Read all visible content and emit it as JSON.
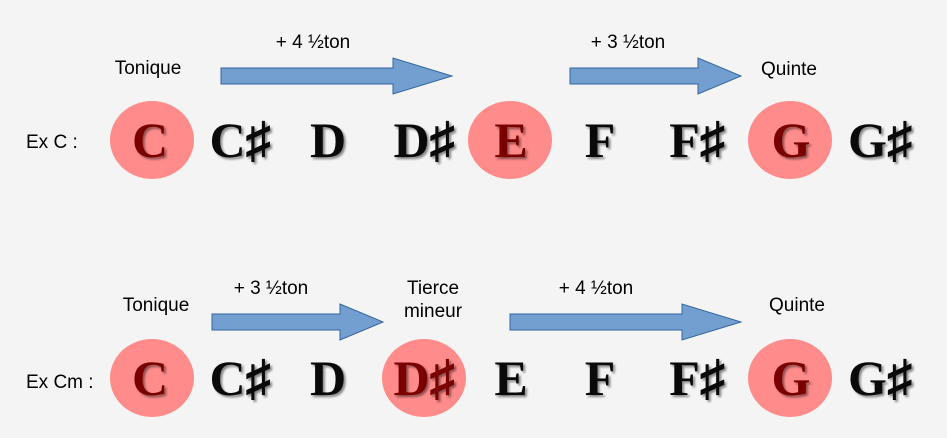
{
  "colors": {
    "background": "#f4f4f4",
    "highlight": "#ff8b8b",
    "arrow_fill": "#729fcf",
    "arrow_stroke": "#3465a4"
  },
  "row1": {
    "example_label": "Ex C :",
    "notes": [
      "C",
      "C♯",
      "D",
      "D♯",
      "E",
      "F",
      "F♯",
      "G",
      "G♯"
    ],
    "highlighted": [
      0,
      4,
      7
    ],
    "labels": {
      "root": "Tonique",
      "fifth": "Quinte"
    },
    "intervals": [
      "+ 4 ½ton",
      "+ 3 ½ton"
    ]
  },
  "row2": {
    "example_label": "Ex Cm :",
    "notes": [
      "C",
      "C♯",
      "D",
      "D♯",
      "E",
      "F",
      "F♯",
      "G",
      "G♯"
    ],
    "highlighted": [
      0,
      3,
      7
    ],
    "labels": {
      "root": "Tonique",
      "third_line1": "Tierce",
      "third_line2": "mineur",
      "fifth": "Quinte"
    },
    "intervals": [
      "+ 3 ½ton",
      "+ 4 ½ton"
    ]
  }
}
